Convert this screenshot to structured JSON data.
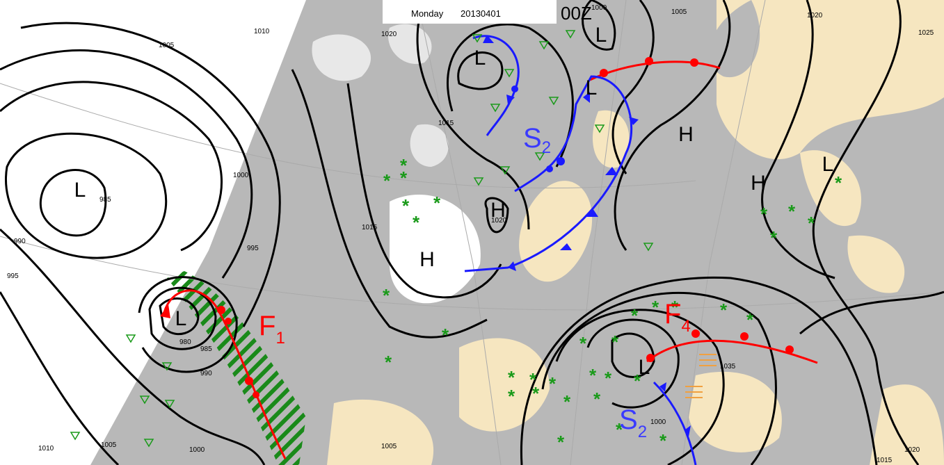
{
  "header": {
    "day": "Monday",
    "date": "20130401",
    "time": "00Z"
  },
  "isobar_labels": [
    "1010",
    "1005",
    "985",
    "990",
    "995",
    "1000",
    "995",
    "980",
    "985",
    "990",
    "1010",
    "1005",
    "1000",
    "1020",
    "1015",
    "1015",
    "1020",
    "1000",
    "1005",
    "1020",
    "1025",
    "1035",
    "1000",
    "1005",
    "1015",
    "1020"
  ],
  "pressure_centers": [
    "L",
    "L",
    "L",
    "L",
    "L",
    "L",
    "L",
    "H",
    "H",
    "H",
    "H"
  ],
  "front_labels": [
    {
      "letter": "F",
      "index": "1"
    },
    {
      "letter": "F",
      "index": "4"
    },
    {
      "letter": "S",
      "index": "2"
    },
    {
      "letter": "S",
      "index": "2"
    }
  ]
}
